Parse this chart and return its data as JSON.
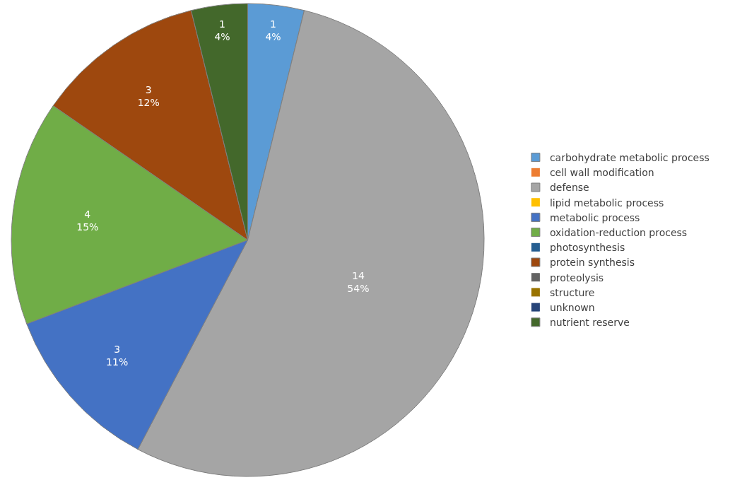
{
  "chart_data": {
    "type": "pie",
    "categories": [
      "carbohydrate metabolic process",
      "cell wall modification",
      "defense",
      "lipid metabolic process",
      "metabolic process",
      "oxidation-reduction process",
      "photosynthesis",
      "protein synthesis",
      "proteolysis",
      "structure",
      "unknown",
      "nutrient reserve"
    ],
    "values": [
      1,
      0,
      14,
      0,
      3,
      4,
      0,
      3,
      0,
      0,
      0,
      1
    ],
    "value_labels": [
      "1\n4%",
      null,
      "14\n54%",
      null,
      "3\n11%",
      "4\n15%",
      null,
      "3\n12%",
      null,
      null,
      null,
      "1\n4%"
    ],
    "colors": [
      "#5b9bd5",
      "#ed7d31",
      "#a5a5a5",
      "#ffc000",
      "#4472c4",
      "#70ad47",
      "#255e91",
      "#9e480e",
      "#636363",
      "#997300",
      "#264478",
      "#43682b"
    ],
    "legend": "right"
  }
}
